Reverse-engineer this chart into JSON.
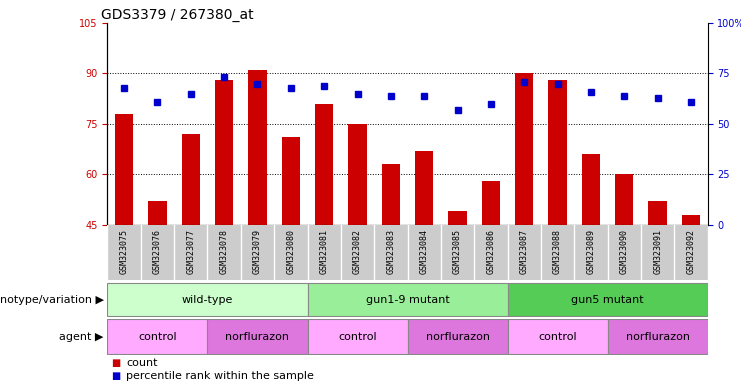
{
  "title": "GDS3379 / 267380_at",
  "samples": [
    "GSM323075",
    "GSM323076",
    "GSM323077",
    "GSM323078",
    "GSM323079",
    "GSM323080",
    "GSM323081",
    "GSM323082",
    "GSM323083",
    "GSM323084",
    "GSM323085",
    "GSM323086",
    "GSM323087",
    "GSM323088",
    "GSM323089",
    "GSM323090",
    "GSM323091",
    "GSM323092"
  ],
  "bar_values": [
    78,
    52,
    72,
    88,
    91,
    71,
    81,
    75,
    63,
    67,
    49,
    58,
    90,
    88,
    66,
    60,
    52,
    48
  ],
  "dot_values_pct": [
    68,
    61,
    65,
    73,
    70,
    68,
    69,
    65,
    64,
    64,
    57,
    60,
    71,
    70,
    66,
    64,
    63,
    61
  ],
  "ylim_left": [
    45,
    105
  ],
  "ylim_right": [
    0,
    100
  ],
  "yticks_left": [
    45,
    60,
    75,
    90,
    105
  ],
  "yticks_right": [
    0,
    25,
    50,
    75,
    100
  ],
  "ytick_labels_left": [
    "45",
    "60",
    "75",
    "90",
    "105"
  ],
  "ytick_labels_right": [
    "0",
    "25",
    "50",
    "75",
    "100%"
  ],
  "bar_color": "#cc0000",
  "dot_color": "#0000cc",
  "genotype_groups": [
    {
      "label": "wild-type",
      "start": 0,
      "end": 5,
      "color": "#ccffcc"
    },
    {
      "label": "gun1-9 mutant",
      "start": 6,
      "end": 11,
      "color": "#99ee99"
    },
    {
      "label": "gun5 mutant",
      "start": 12,
      "end": 17,
      "color": "#55cc55"
    }
  ],
  "agent_groups": [
    {
      "label": "control",
      "start": 0,
      "end": 2,
      "color": "#ffaaff"
    },
    {
      "label": "norflurazon",
      "start": 3,
      "end": 5,
      "color": "#dd77dd"
    },
    {
      "label": "control",
      "start": 6,
      "end": 8,
      "color": "#ffaaff"
    },
    {
      "label": "norflurazon",
      "start": 9,
      "end": 11,
      "color": "#dd77dd"
    },
    {
      "label": "control",
      "start": 12,
      "end": 14,
      "color": "#ffaaff"
    },
    {
      "label": "norflurazon",
      "start": 15,
      "end": 17,
      "color": "#dd77dd"
    }
  ],
  "legend_count_label": "count",
  "legend_pct_label": "percentile rank within the sample",
  "genotype_label": "genotype/variation",
  "agent_label": "agent",
  "title_fontsize": 10,
  "tick_fontsize": 7,
  "sample_fontsize": 6,
  "row_label_fontsize": 8,
  "group_label_fontsize": 8
}
